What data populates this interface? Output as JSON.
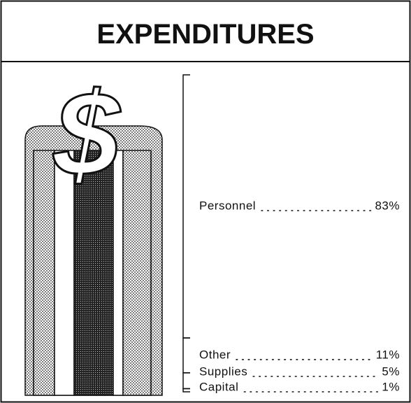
{
  "chart_data": {
    "type": "bar",
    "title": "EXPENDITURES",
    "categories": [
      "Personnel",
      "Other",
      "Supplies",
      "Capital"
    ],
    "values": [
      83,
      11,
      5,
      1
    ],
    "value_labels": [
      "83%",
      "11%",
      "5%",
      "1%"
    ],
    "color": "#111111"
  }
}
